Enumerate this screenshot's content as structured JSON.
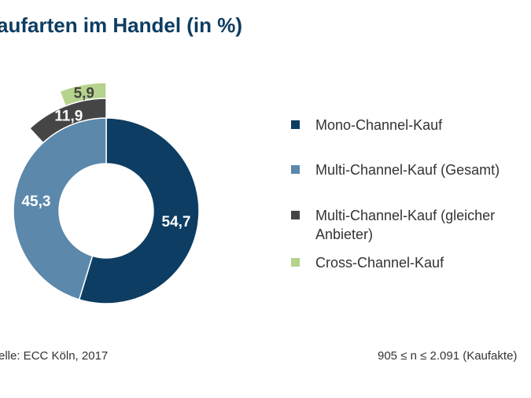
{
  "chart_data": {
    "type": "pie",
    "title": "Kaufarten im Handel (in %)",
    "inner_ring": [
      {
        "name": "Mono-Channel-Kauf",
        "value": 54.7,
        "label": "54,7",
        "color": "#0d3d62"
      },
      {
        "name": "Multi-Channel-Kauf (Gesamt)",
        "value": 45.3,
        "label": "45,3",
        "color": "#5b88ab"
      }
    ],
    "outer_ring": [
      {
        "name": "Multi-Channel-Kauf (gleicher Anbieter)",
        "value": 11.9,
        "label": "11,9",
        "color": "#454545"
      },
      {
        "name": "Cross-Channel-Kauf",
        "value": 5.9,
        "label": "5,9",
        "color": "#b5d38c"
      }
    ],
    "legend": [
      {
        "label": "Mono-Channel-Kauf",
        "color": "#0d3d62"
      },
      {
        "label": "Multi-Channel-Kauf (Gesamt)",
        "color": "#5b88ab"
      },
      {
        "label": "Multi-Channel-Kauf (gleicher Anbieter)",
        "color": "#454545"
      },
      {
        "label": "Cross-Channel-Kauf",
        "color": "#b5d38c"
      }
    ],
    "legend_position": "right"
  },
  "title_visible": "aufarten im Handel (in %)",
  "legend_lines": [
    [
      "Mono-Channel-Kauf"
    ],
    [
      "Multi-Channel-Kauf (Gesamt)"
    ],
    [
      "Multi-Channel-Kauf (gleicher",
      "Anbieter)"
    ],
    [
      "Cross-Channel-Kauf"
    ]
  ],
  "source": "elle: ECC Köln, 2017",
  "sample": "905 ≤ n ≤ 2.091 (Kaufakte)"
}
